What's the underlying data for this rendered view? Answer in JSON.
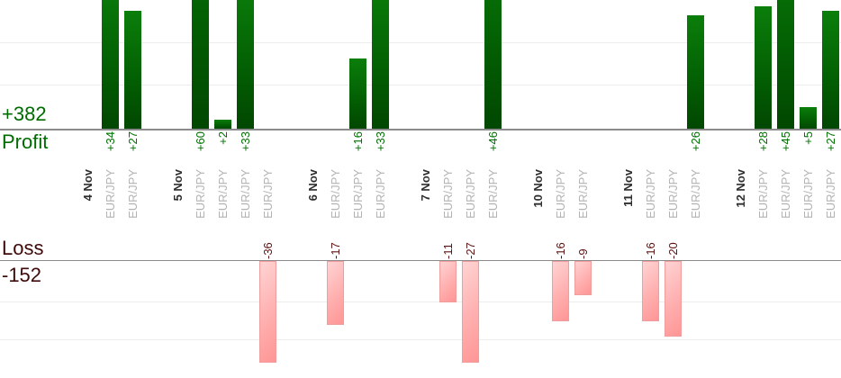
{
  "chart_data": {
    "type": "bar",
    "title": "",
    "description": "Per-trade profit and loss bar chart, profit panel above axis band, loss panel below",
    "profit_axis_label": "Profit",
    "profit_total": "+382",
    "loss_axis_label": "Loss",
    "loss_total": "-152",
    "legend_position": "none",
    "grid": true,
    "groups": [
      {
        "date": "4 Nov",
        "trades": [
          {
            "symbol": "EUR/JPY",
            "value": 34
          },
          {
            "symbol": "EUR/JPY",
            "value": 27
          }
        ]
      },
      {
        "date": "5 Nov",
        "trades": [
          {
            "symbol": "EUR/JPY",
            "value": 60
          },
          {
            "symbol": "EUR/JPY",
            "value": 2
          },
          {
            "symbol": "EUR/JPY",
            "value": 33
          },
          {
            "symbol": "EUR/JPY",
            "value": -36
          }
        ]
      },
      {
        "date": "6 Nov",
        "trades": [
          {
            "symbol": "EUR/JPY",
            "value": -17
          },
          {
            "symbol": "EUR/JPY",
            "value": 16
          },
          {
            "symbol": "EUR/JPY",
            "value": 33
          }
        ]
      },
      {
        "date": "7 Nov",
        "trades": [
          {
            "symbol": "EUR/JPY",
            "value": -11
          },
          {
            "symbol": "EUR/JPY",
            "value": -27
          },
          {
            "symbol": "EUR/JPY",
            "value": 46
          }
        ]
      },
      {
        "date": "10 Nov",
        "trades": [
          {
            "symbol": "EUR/JPY",
            "value": -16
          },
          {
            "symbol": "EUR/JPY",
            "value": -9
          }
        ]
      },
      {
        "date": "11 Nov",
        "trades": [
          {
            "symbol": "EUR/JPY",
            "value": -16
          },
          {
            "symbol": "EUR/JPY",
            "value": -20
          },
          {
            "symbol": "EUR/JPY",
            "value": 26
          }
        ]
      },
      {
        "date": "12 Nov",
        "trades": [
          {
            "symbol": "EUR/JPY",
            "value": 28
          },
          {
            "symbol": "EUR/JPY",
            "value": 45
          },
          {
            "symbol": "EUR/JPY",
            "value": 5
          },
          {
            "symbol": "EUR/JPY",
            "value": 27
          }
        ]
      }
    ],
    "colors": {
      "profit_bar": "#067206",
      "loss_bar": "#ffaaaa",
      "profit_text": "#006b00",
      "loss_text": "#3f0a0a",
      "loss_value_text": "#5c1212",
      "date_text": "#2e2e2e",
      "symbol_text": "#b3b3b3",
      "axis_line": "#8b8b8b",
      "gridline": "#ededed"
    }
  }
}
